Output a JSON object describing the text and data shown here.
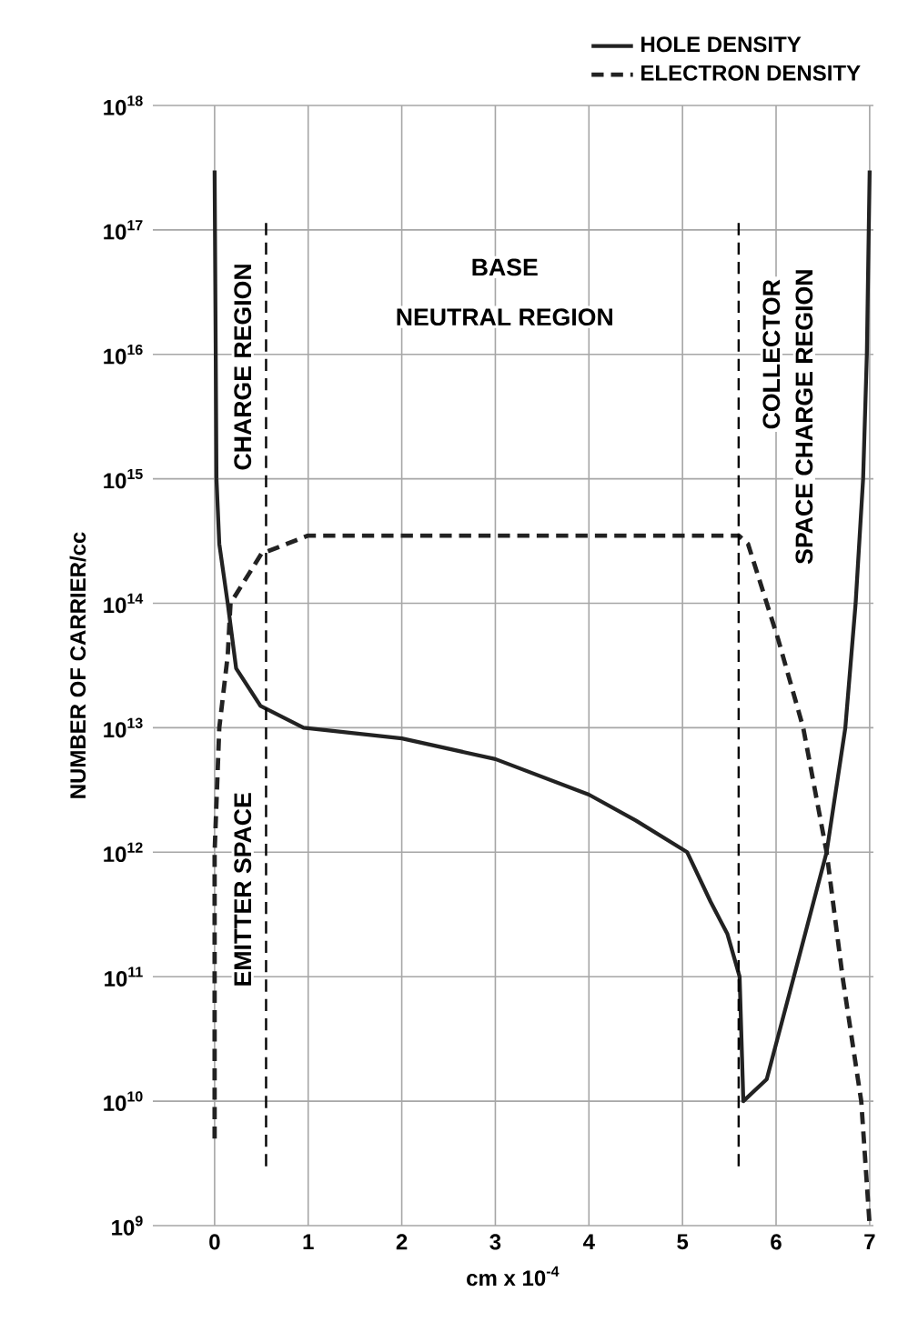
{
  "chart_data": {
    "type": "line",
    "xlabel": "cm x 10$^{-4}$",
    "ylabel": "NUMBER OF CARRIER/cc",
    "log": "y",
    "xlim": [
      -0.66,
      7.04
    ],
    "xticks": [
      0,
      1,
      2,
      3,
      4,
      5,
      6,
      7
    ],
    "ylim": [
      1000000000.0,
      1e+18
    ],
    "yticks": [
      {
        "value": 1000000000.0,
        "label": "10$^{9}$"
      },
      {
        "value": 10000000000.0,
        "label": "10$^{10}$"
      },
      {
        "value": 100000000000.0,
        "label": "10$^{11}$"
      },
      {
        "value": 1000000000000.0,
        "label": "10$^{12}$"
      },
      {
        "value": 10000000000000.0,
        "label": "10$^{13}$"
      },
      {
        "value": 100000000000000.0,
        "label": "10$^{14}$"
      },
      {
        "value": 1000000000000000.0,
        "label": "10$^{15}$"
      },
      {
        "value": 1e+16,
        "label": "10$^{16}$"
      },
      {
        "value": 1e+17,
        "label": "10$^{17}$"
      },
      {
        "value": 1e+18,
        "label": "10$^{18}$"
      }
    ],
    "grid": true,
    "legend": "top right",
    "marker": "none",
    "series": [
      {
        "name": "HOLE DENSITY",
        "color": "#222222",
        "line_style": "solid",
        "x": [
          0,
          0.02,
          0.05,
          0.14,
          0.23,
          0.49,
          0.95,
          2,
          3,
          4,
          4.5,
          5.05,
          5.3,
          5.48,
          5.61,
          5.65,
          5.9,
          6.19,
          6.54,
          6.74,
          6.85,
          6.93,
          6.97,
          7.0
        ],
        "values": [
          3e+17,
          1000000000000000.0,
          300000000000000.0,
          100000000000000.0,
          30000000000000.0,
          15000000000000.0,
          10000000000000.0,
          8200000000000.0,
          5600000000000.0,
          2900000000000.0,
          1800000000000.0,
          1000000000000.0,
          400000000000.0,
          220000000000.0,
          100000000000.0,
          10000000000.0,
          15000000000.0,
          100000000000.0,
          1000000000000.0,
          10000000000000.0,
          100000000000000.0,
          1000000000000000.0,
          1e+16,
          3e+17
        ]
      },
      {
        "name": "ELECTRON DENSITY",
        "color": "#222222",
        "line_style": "dashed",
        "x": [
          0,
          0.0,
          0.05,
          0.14,
          0.17,
          0.5,
          1,
          2,
          3,
          4,
          5,
          5.6,
          5.7,
          6.02,
          6.29,
          6.54,
          6.71,
          6.91,
          7.0
        ],
        "values": [
          5000000000.0,
          1000000000000.0,
          10000000000000.0,
          38000000000000.0,
          100000000000000.0,
          250000000000000.0,
          350000000000000.0,
          350000000000000.0,
          350000000000000.0,
          350000000000000.0,
          350000000000000.0,
          350000000000000.0,
          300000000000000.0,
          52000000000000.0,
          10000000000000.0,
          1000000000000.0,
          100000000000.0,
          10000000000.0,
          1000000000.0
        ]
      }
    ],
    "ref_lines": [
      {
        "axis": "x",
        "value": 0.55,
        "line_style": "dashed"
      },
      {
        "axis": "x",
        "value": 5.6,
        "line_style": "dashed"
      }
    ],
    "annotations": [
      "EMITTER SPACE",
      "CHARGE REGION",
      "BASE",
      "NEUTRAL REGION",
      "COLLECTOR",
      "SPACE CHARGE REGION"
    ]
  }
}
